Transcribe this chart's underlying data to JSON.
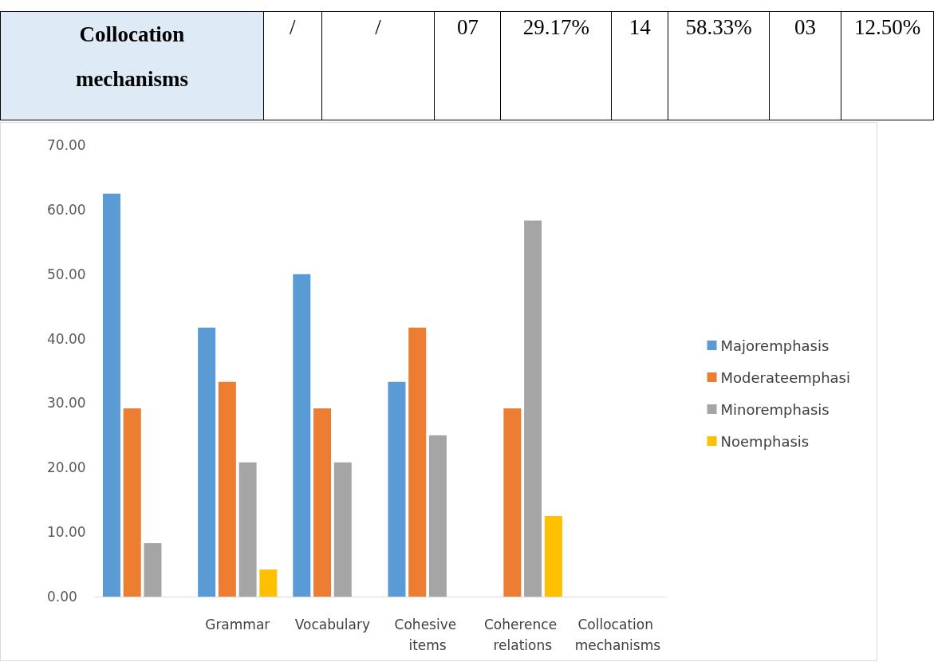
{
  "chart_data": {
    "type": "bar",
    "annotations": [
      "Collocation mechanisms",
      "/",
      "/",
      "07",
      "29.17%",
      "14",
      "58.33%",
      "03",
      "12.50%"
    ],
    "categories": [
      null,
      "Grammar",
      "Vocabulary",
      "Cohesive items",
      "Coherence relations",
      "Collocation mechanisms"
    ],
    "series": [
      {
        "name": "Majoremphasis",
        "color": "#5b9bd5",
        "values": [
          62.5,
          41.7,
          50,
          33.3,
          null,
          null
        ]
      },
      {
        "name": "Moderateemphasi",
        "color": "#ed7d31",
        "values": [
          29.2,
          33.3,
          29.2,
          41.7,
          29.2,
          null
        ]
      },
      {
        "name": "Minoremphasis",
        "color": "#a5a5a5",
        "values": [
          8.3,
          20.8,
          20.8,
          25,
          58.3,
          null
        ]
      },
      {
        "name": "Noemphasis",
        "color": "#ffc000",
        "values": [
          null,
          4.2,
          null,
          null,
          12.5,
          null
        ]
      }
    ],
    "ylim": [
      0,
      70
    ],
    "yticks": [
      {
        "value": 0,
        "label": "0.00"
      },
      {
        "value": 10,
        "label": "10.00"
      },
      {
        "value": 20,
        "label": "20.00"
      },
      {
        "value": 30,
        "label": "30.00"
      },
      {
        "value": 40,
        "label": "40.00"
      },
      {
        "value": 50,
        "label": "50.00"
      },
      {
        "value": 60,
        "label": "60.00"
      },
      {
        "value": 70,
        "label": "70.00"
      }
    ],
    "legend": "right"
  }
}
